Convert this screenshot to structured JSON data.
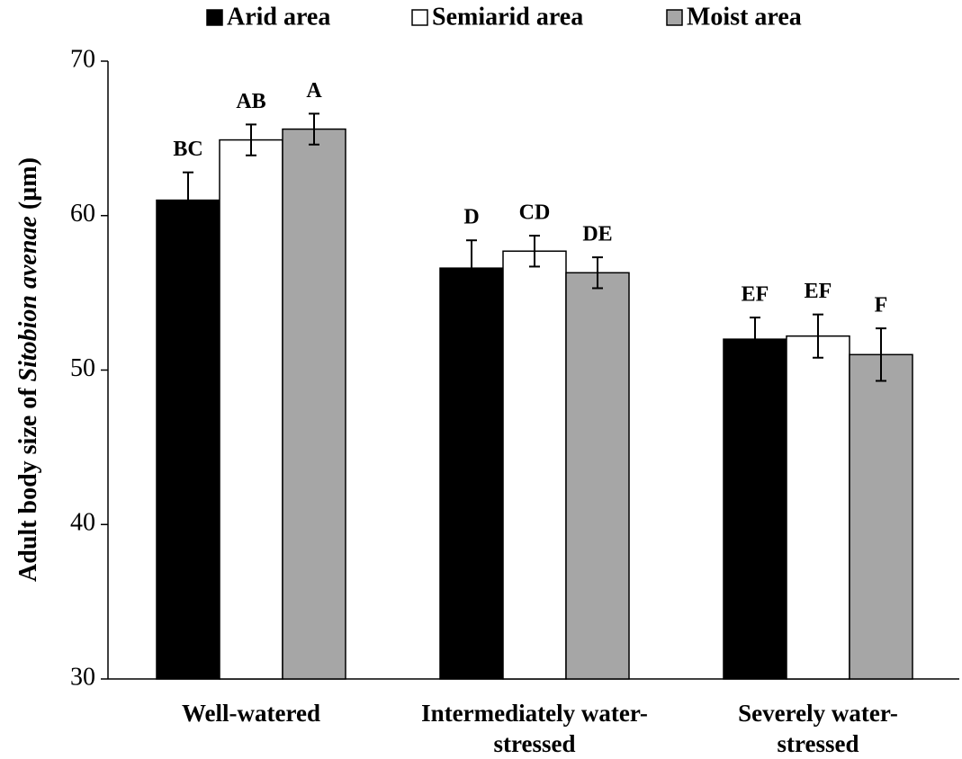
{
  "chart_data": {
    "type": "bar",
    "ylabel": [
      "Adult body size of",
      "Sitobion avenae",
      "(µm)"
    ],
    "categories": [
      "Well-watered",
      "Intermediately water-\nstressed",
      "Severely water-\nstressed"
    ],
    "series": [
      {
        "name": "Arid area",
        "color": "#000000",
        "values": [
          61.0,
          56.6,
          52.0
        ],
        "errors": [
          1.8,
          1.8,
          1.4
        ],
        "annotations": [
          "BC",
          "D",
          "EF"
        ]
      },
      {
        "name": "Semiarid area",
        "color": "#ffffff",
        "values": [
          64.9,
          57.7,
          52.2
        ],
        "errors": [
          1.0,
          1.0,
          1.4
        ],
        "annotations": [
          "AB",
          "CD",
          "EF"
        ]
      },
      {
        "name": "Moist area",
        "color": "#a6a6a6",
        "values": [
          65.6,
          56.3,
          51.0
        ],
        "errors": [
          1.0,
          1.0,
          1.7
        ],
        "annotations": [
          "A",
          "DE",
          "F"
        ]
      }
    ],
    "ylim": [
      30,
      70
    ],
    "yticks": [
      30,
      40,
      50,
      60,
      70
    ],
    "grid": false,
    "legend": "top"
  }
}
